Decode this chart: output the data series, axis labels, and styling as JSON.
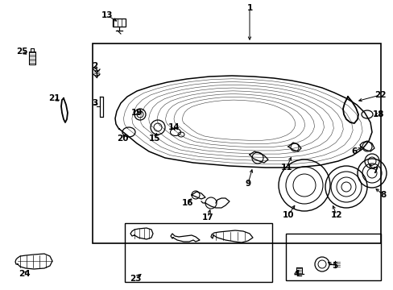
{
  "bg_color": "#ffffff",
  "line_color": "#000000",
  "fig_width": 4.89,
  "fig_height": 3.6,
  "dpi": 100,
  "labels": {
    "1": [
      310,
      350,
      310,
      307
    ],
    "13": [
      133,
      341,
      148,
      332
    ],
    "12": [
      418,
      93,
      412,
      108
    ],
    "10": [
      358,
      93,
      368,
      108
    ],
    "8": [
      476,
      118,
      464,
      128
    ],
    "7": [
      466,
      148,
      456,
      158
    ],
    "6": [
      440,
      172,
      452,
      178
    ],
    "17": [
      258,
      90,
      262,
      103
    ],
    "16": [
      233,
      108,
      240,
      116
    ],
    "9": [
      308,
      132,
      314,
      153
    ],
    "11": [
      356,
      152,
      363,
      168
    ],
    "20": [
      152,
      188,
      157,
      196
    ],
    "15": [
      192,
      188,
      196,
      198
    ],
    "14": [
      216,
      202,
      218,
      195
    ],
    "19": [
      170,
      220,
      174,
      218
    ],
    "3": [
      118,
      232,
      124,
      228
    ],
    "21": [
      67,
      238,
      76,
      233
    ],
    "25": [
      27,
      296,
      36,
      291
    ],
    "2": [
      118,
      278,
      120,
      273
    ],
    "24": [
      30,
      20,
      35,
      26
    ],
    "23": [
      168,
      14,
      178,
      22
    ],
    "18": [
      470,
      218,
      462,
      216
    ],
    "22": [
      472,
      242,
      442,
      234
    ],
    "4": [
      368,
      20,
      373,
      28
    ],
    "5": [
      416,
      30,
      404,
      36
    ]
  }
}
